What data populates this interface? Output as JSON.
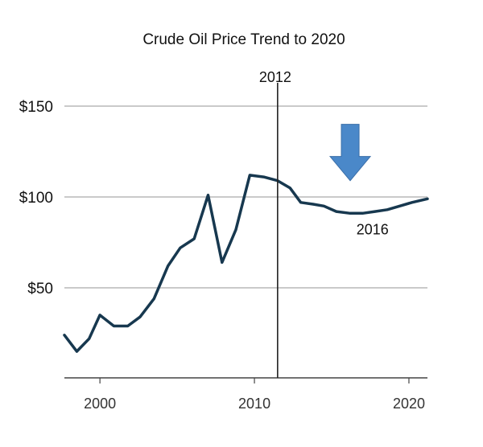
{
  "chart_data": {
    "type": "line",
    "title": "Crude Oil Price Trend to 2020",
    "xlabel": "",
    "ylabel": "",
    "xlim": [
      1997.7,
      2021.2
    ],
    "ylim": [
      0,
      150
    ],
    "grid": true,
    "legend": "none",
    "x_ticks": [
      {
        "value": 2000,
        "label": "2000"
      },
      {
        "value": 2010,
        "label": "2010"
      },
      {
        "value": 2020,
        "label": "2020"
      }
    ],
    "y_ticks": [
      {
        "value": 50,
        "label": "$50"
      },
      {
        "value": 100,
        "label": "$100"
      },
      {
        "value": 150,
        "label": "$150"
      }
    ],
    "series": [
      {
        "color": "#17384f",
        "x": [
          1997.7,
          1998.5,
          1999.3,
          2000,
          2000.9,
          2001.8,
          2002.6,
          2003.5,
          2004.4,
          2005.2,
          2006.1,
          2007,
          2007.9,
          2008.8,
          2009.7,
          2010.6,
          2011.5,
          2012.3,
          2013,
          2013.8,
          2014.5,
          2015.3,
          2016.2,
          2017,
          2017.8,
          2018.6,
          2019.4,
          2020.2,
          2021.2
        ],
        "y": [
          24,
          15,
          22,
          35,
          29,
          29,
          34,
          44,
          62,
          72,
          77,
          101,
          64,
          82,
          112,
          111,
          109,
          105,
          97,
          96,
          95,
          92,
          91,
          91,
          92,
          93,
          95,
          97,
          99
        ]
      }
    ],
    "vline": {
      "x": 2011.5,
      "label": "2012",
      "color": "#222222"
    },
    "arrow": {
      "x": 2016.2,
      "y_top": 140,
      "y_bottom": 109,
      "color": "#4a88c9",
      "stroke": "#3a6ea8"
    },
    "annotations": [
      {
        "text": "2016",
        "x": 2016.6,
        "y": 82
      }
    ],
    "gridline_color": "#b9b9b9",
    "axis_color": "#444444"
  }
}
